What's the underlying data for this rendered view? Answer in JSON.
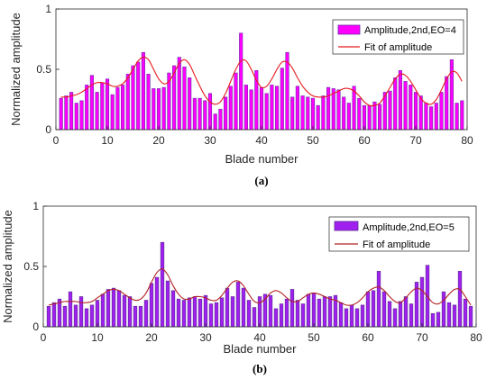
{
  "chart_data": [
    {
      "type": "bar",
      "panel_label": "(a)",
      "xlabel": "Blade number",
      "ylabel": "Normalized amplitude",
      "xlim": [
        0,
        80
      ],
      "ylim": [
        0,
        1
      ],
      "xticks": [
        "0",
        "10",
        "20",
        "30",
        "40",
        "50",
        "60",
        "70",
        "80"
      ],
      "yticks": [
        "0",
        "0.5",
        "1"
      ],
      "legend_position": "top-right",
      "series": [
        {
          "name": "Amplitude,2nd,EO=4",
          "kind": "bar",
          "color": "#ff00ff",
          "edge": "#6a2ea8",
          "x": [
            1,
            2,
            3,
            4,
            5,
            6,
            7,
            8,
            9,
            10,
            11,
            12,
            13,
            14,
            15,
            16,
            17,
            18,
            19,
            20,
            21,
            22,
            23,
            24,
            25,
            26,
            27,
            28,
            29,
            30,
            31,
            32,
            33,
            34,
            35,
            36,
            37,
            38,
            39,
            40,
            41,
            42,
            43,
            44,
            45,
            46,
            47,
            48,
            49,
            50,
            51,
            52,
            53,
            54,
            55,
            56,
            57,
            58,
            59,
            60,
            61,
            62,
            63,
            64,
            65,
            66,
            67,
            68,
            69,
            70,
            71,
            72,
            73,
            74,
            75,
            76,
            77,
            78,
            79
          ],
          "values": [
            0.26,
            0.28,
            0.31,
            0.22,
            0.24,
            0.37,
            0.45,
            0.31,
            0.39,
            0.42,
            0.29,
            0.35,
            0.37,
            0.46,
            0.53,
            0.56,
            0.64,
            0.46,
            0.34,
            0.34,
            0.35,
            0.47,
            0.53,
            0.6,
            0.52,
            0.43,
            0.26,
            0.26,
            0.24,
            0.3,
            0.13,
            0.17,
            0.27,
            0.36,
            0.47,
            0.8,
            0.37,
            0.33,
            0.49,
            0.35,
            0.3,
            0.37,
            0.36,
            0.51,
            0.64,
            0.27,
            0.36,
            0.28,
            0.27,
            0.26,
            0.2,
            0.28,
            0.35,
            0.34,
            0.33,
            0.27,
            0.22,
            0.36,
            0.26,
            0.2,
            0.2,
            0.23,
            0.21,
            0.31,
            0.32,
            0.43,
            0.49,
            0.4,
            0.37,
            0.31,
            0.28,
            0.22,
            0.19,
            0.22,
            0.31,
            0.44,
            0.58,
            0.22,
            0.24
          ]
        },
        {
          "name": "Fit of amplitude",
          "kind": "line",
          "color": "#e8191e",
          "x": [
            1,
            2,
            3,
            4,
            5,
            6,
            7,
            8,
            9,
            10,
            11,
            12,
            13,
            14,
            15,
            16,
            17,
            18,
            19,
            20,
            21,
            22,
            23,
            24,
            25,
            26,
            27,
            28,
            29,
            30,
            31,
            32,
            33,
            34,
            35,
            36,
            37,
            38,
            39,
            40,
            41,
            42,
            43,
            44,
            45,
            46,
            47,
            48,
            49,
            50,
            51,
            52,
            53,
            54,
            55,
            56,
            57,
            58,
            59,
            60,
            61,
            62,
            63,
            64,
            65,
            66,
            67,
            68,
            69,
            70,
            71,
            72,
            73,
            74,
            75,
            76,
            77,
            78,
            79
          ],
          "values": [
            0.27,
            0.27,
            0.28,
            0.29,
            0.31,
            0.34,
            0.37,
            0.39,
            0.39,
            0.38,
            0.36,
            0.36,
            0.38,
            0.43,
            0.5,
            0.57,
            0.6,
            0.58,
            0.5,
            0.42,
            0.38,
            0.4,
            0.47,
            0.55,
            0.58,
            0.54,
            0.45,
            0.36,
            0.28,
            0.23,
            0.21,
            0.23,
            0.3,
            0.4,
            0.5,
            0.57,
            0.57,
            0.5,
            0.41,
            0.35,
            0.36,
            0.42,
            0.5,
            0.56,
            0.56,
            0.51,
            0.43,
            0.36,
            0.31,
            0.28,
            0.27,
            0.27,
            0.28,
            0.3,
            0.32,
            0.34,
            0.34,
            0.32,
            0.28,
            0.23,
            0.2,
            0.2,
            0.22,
            0.28,
            0.35,
            0.42,
            0.46,
            0.45,
            0.4,
            0.33,
            0.26,
            0.22,
            0.21,
            0.25,
            0.33,
            0.42,
            0.48,
            0.47,
            0.4
          ]
        }
      ]
    },
    {
      "type": "bar",
      "panel_label": "(b)",
      "xlabel": "Blade number",
      "ylabel": "Normalized amplitude",
      "xlim": [
        0,
        80
      ],
      "ylim": [
        0,
        1
      ],
      "xticks": [
        "0",
        "10",
        "20",
        "30",
        "40",
        "50",
        "60",
        "70",
        "80"
      ],
      "yticks": [
        "0",
        "0.5",
        "1"
      ],
      "legend_position": "top-right",
      "series": [
        {
          "name": "Amplitude,2nd,EO=5",
          "kind": "bar",
          "color": "#a020f0",
          "edge": "#5a2a90",
          "x": [
            1,
            2,
            3,
            4,
            5,
            6,
            7,
            8,
            9,
            10,
            11,
            12,
            13,
            14,
            15,
            16,
            17,
            18,
            19,
            20,
            21,
            22,
            23,
            24,
            25,
            26,
            27,
            28,
            29,
            30,
            31,
            32,
            33,
            34,
            35,
            36,
            37,
            38,
            39,
            40,
            41,
            42,
            43,
            44,
            45,
            46,
            47,
            48,
            49,
            50,
            51,
            52,
            53,
            54,
            55,
            56,
            57,
            58,
            59,
            60,
            61,
            62,
            63,
            64,
            65,
            66,
            67,
            68,
            69,
            70,
            71,
            72,
            73,
            74,
            75,
            76,
            77,
            78,
            79
          ],
          "values": [
            0.17,
            0.2,
            0.23,
            0.17,
            0.29,
            0.18,
            0.25,
            0.15,
            0.18,
            0.22,
            0.27,
            0.31,
            0.32,
            0.3,
            0.26,
            0.25,
            0.17,
            0.17,
            0.22,
            0.36,
            0.41,
            0.7,
            0.38,
            0.3,
            0.23,
            0.22,
            0.24,
            0.25,
            0.23,
            0.26,
            0.19,
            0.2,
            0.24,
            0.32,
            0.25,
            0.37,
            0.32,
            0.22,
            0.16,
            0.25,
            0.27,
            0.26,
            0.15,
            0.19,
            0.23,
            0.31,
            0.22,
            0.19,
            0.27,
            0.28,
            0.23,
            0.25,
            0.25,
            0.26,
            0.2,
            0.15,
            0.18,
            0.15,
            0.18,
            0.29,
            0.3,
            0.46,
            0.29,
            0.21,
            0.15,
            0.21,
            0.25,
            0.19,
            0.37,
            0.41,
            0.51,
            0.11,
            0.12,
            0.29,
            0.2,
            0.18,
            0.46,
            0.23,
            0.17
          ]
        },
        {
          "name": "Fit of amplitude",
          "kind": "line",
          "color": "#b22222",
          "x": [
            1,
            2,
            3,
            4,
            5,
            6,
            7,
            8,
            9,
            10,
            11,
            12,
            13,
            14,
            15,
            16,
            17,
            18,
            19,
            20,
            21,
            22,
            23,
            24,
            25,
            26,
            27,
            28,
            29,
            30,
            31,
            32,
            33,
            34,
            35,
            36,
            37,
            38,
            39,
            40,
            41,
            42,
            43,
            44,
            45,
            46,
            47,
            48,
            49,
            50,
            51,
            52,
            53,
            54,
            55,
            56,
            57,
            58,
            59,
            60,
            61,
            62,
            63,
            64,
            65,
            66,
            67,
            68,
            69,
            70,
            71,
            72,
            73,
            74,
            75,
            76,
            77,
            78,
            79
          ],
          "values": [
            0.18,
            0.19,
            0.2,
            0.21,
            0.21,
            0.21,
            0.2,
            0.2,
            0.21,
            0.24,
            0.27,
            0.3,
            0.31,
            0.3,
            0.27,
            0.24,
            0.22,
            0.23,
            0.28,
            0.37,
            0.45,
            0.48,
            0.43,
            0.34,
            0.27,
            0.23,
            0.23,
            0.25,
            0.25,
            0.24,
            0.22,
            0.22,
            0.26,
            0.32,
            0.37,
            0.38,
            0.34,
            0.27,
            0.21,
            0.2,
            0.23,
            0.28,
            0.3,
            0.28,
            0.24,
            0.21,
            0.21,
            0.24,
            0.27,
            0.28,
            0.27,
            0.25,
            0.23,
            0.22,
            0.2,
            0.18,
            0.18,
            0.2,
            0.24,
            0.29,
            0.32,
            0.33,
            0.3,
            0.25,
            0.21,
            0.2,
            0.24,
            0.29,
            0.32,
            0.3,
            0.25,
            0.2,
            0.19,
            0.22,
            0.27,
            0.31,
            0.31,
            0.25,
            0.18
          ]
        }
      ]
    }
  ]
}
